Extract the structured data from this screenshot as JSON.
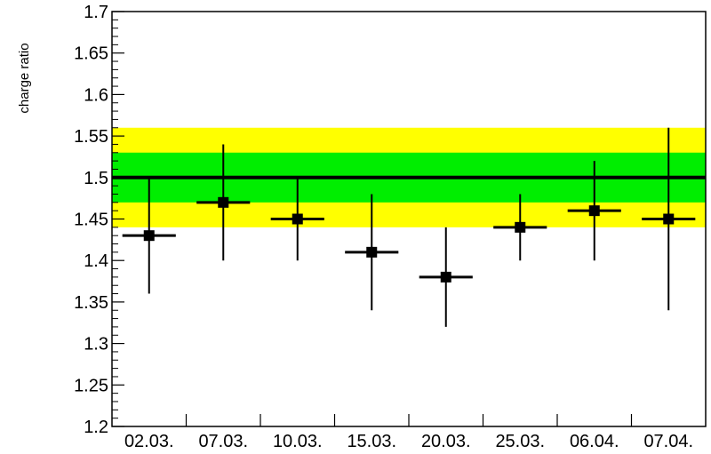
{
  "chart_data": {
    "type": "scatter",
    "title": "",
    "xlabel": "",
    "ylabel": "charge ratio",
    "ylim": [
      1.2,
      1.7
    ],
    "y_ticks": [
      "1.2",
      "1.25",
      "1.3",
      "1.35",
      "1.4",
      "1.45",
      "1.5",
      "1.55",
      "1.6",
      "1.65",
      "1.7"
    ],
    "categories": [
      "02.03.",
      "07.03.",
      "10.03.",
      "15.03.",
      "20.03.",
      "25.03.",
      "06.04.",
      "07.04."
    ],
    "values": [
      1.43,
      1.47,
      1.45,
      1.41,
      1.38,
      1.44,
      1.46,
      1.45
    ],
    "err_low": [
      1.36,
      1.4,
      1.4,
      1.34,
      1.32,
      1.4,
      1.4,
      1.34
    ],
    "err_high": [
      1.5,
      1.54,
      1.5,
      1.48,
      1.44,
      1.48,
      1.52,
      1.56
    ],
    "reference_line": 1.5,
    "bands": [
      {
        "from": 1.44,
        "to": 1.56,
        "color": "#ffff00"
      },
      {
        "from": 1.47,
        "to": 1.53,
        "color": "#00ee00"
      }
    ],
    "grid": false,
    "legend": "none",
    "colors": {
      "marker": "#000000",
      "axis": "#000000"
    }
  }
}
